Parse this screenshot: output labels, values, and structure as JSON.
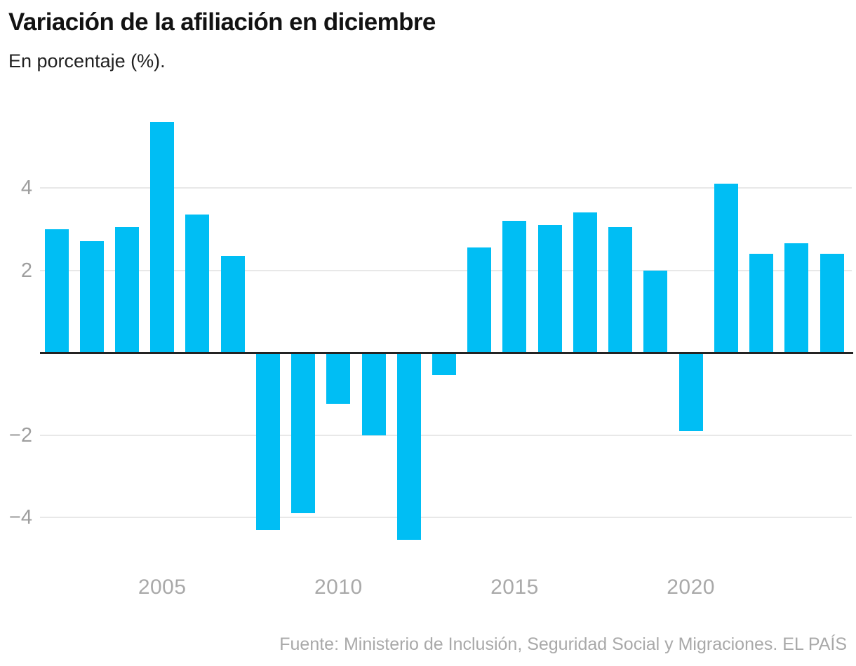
{
  "header": {
    "title": "Variación de la afiliación en diciembre",
    "subtitle": "En porcentaje (%)."
  },
  "footer": {
    "source": "Fuente: Ministerio de Inclusión, Seguridad Social y Migraciones. EL PAÍS"
  },
  "colors": {
    "bar": "#00BEF4",
    "grid": "#e8e8e8",
    "zero_axis": "#232323",
    "axis_label": "#a9a9a9",
    "title": "#121212"
  },
  "chart_data": {
    "type": "bar",
    "title": "Variación de la afiliación en diciembre",
    "subtitle": "En porcentaje (%).",
    "xlabel": "",
    "ylabel": "En porcentaje (%)",
    "categories": [
      2002,
      2003,
      2004,
      2005,
      2006,
      2007,
      2008,
      2009,
      2010,
      2011,
      2012,
      2013,
      2014,
      2015,
      2016,
      2017,
      2018,
      2019,
      2020,
      2021,
      2022,
      2023,
      2024
    ],
    "values": [
      3.0,
      2.7,
      3.05,
      5.6,
      3.35,
      2.35,
      -4.3,
      -3.9,
      -1.25,
      -2.0,
      -4.55,
      -0.55,
      2.55,
      3.2,
      3.1,
      3.4,
      3.05,
      2.0,
      -1.9,
      4.1,
      2.4,
      2.65,
      2.4
    ],
    "y_ticks": [
      4,
      2,
      -2,
      -4
    ],
    "y_tick_labels": [
      "4",
      "2",
      "−2",
      "−4"
    ],
    "x_ticks": [
      2005,
      2010,
      2015,
      2020
    ],
    "x_tick_labels": [
      "2005",
      "2010",
      "2015",
      "2020"
    ],
    "ylim": [
      -4.8,
      5.9
    ],
    "grid": "horizontal",
    "legend": "none",
    "bar_color": "#00BEF4",
    "source": "Fuente: Ministerio de Inclusión, Seguridad Social y Migraciones. EL PAÍS"
  }
}
